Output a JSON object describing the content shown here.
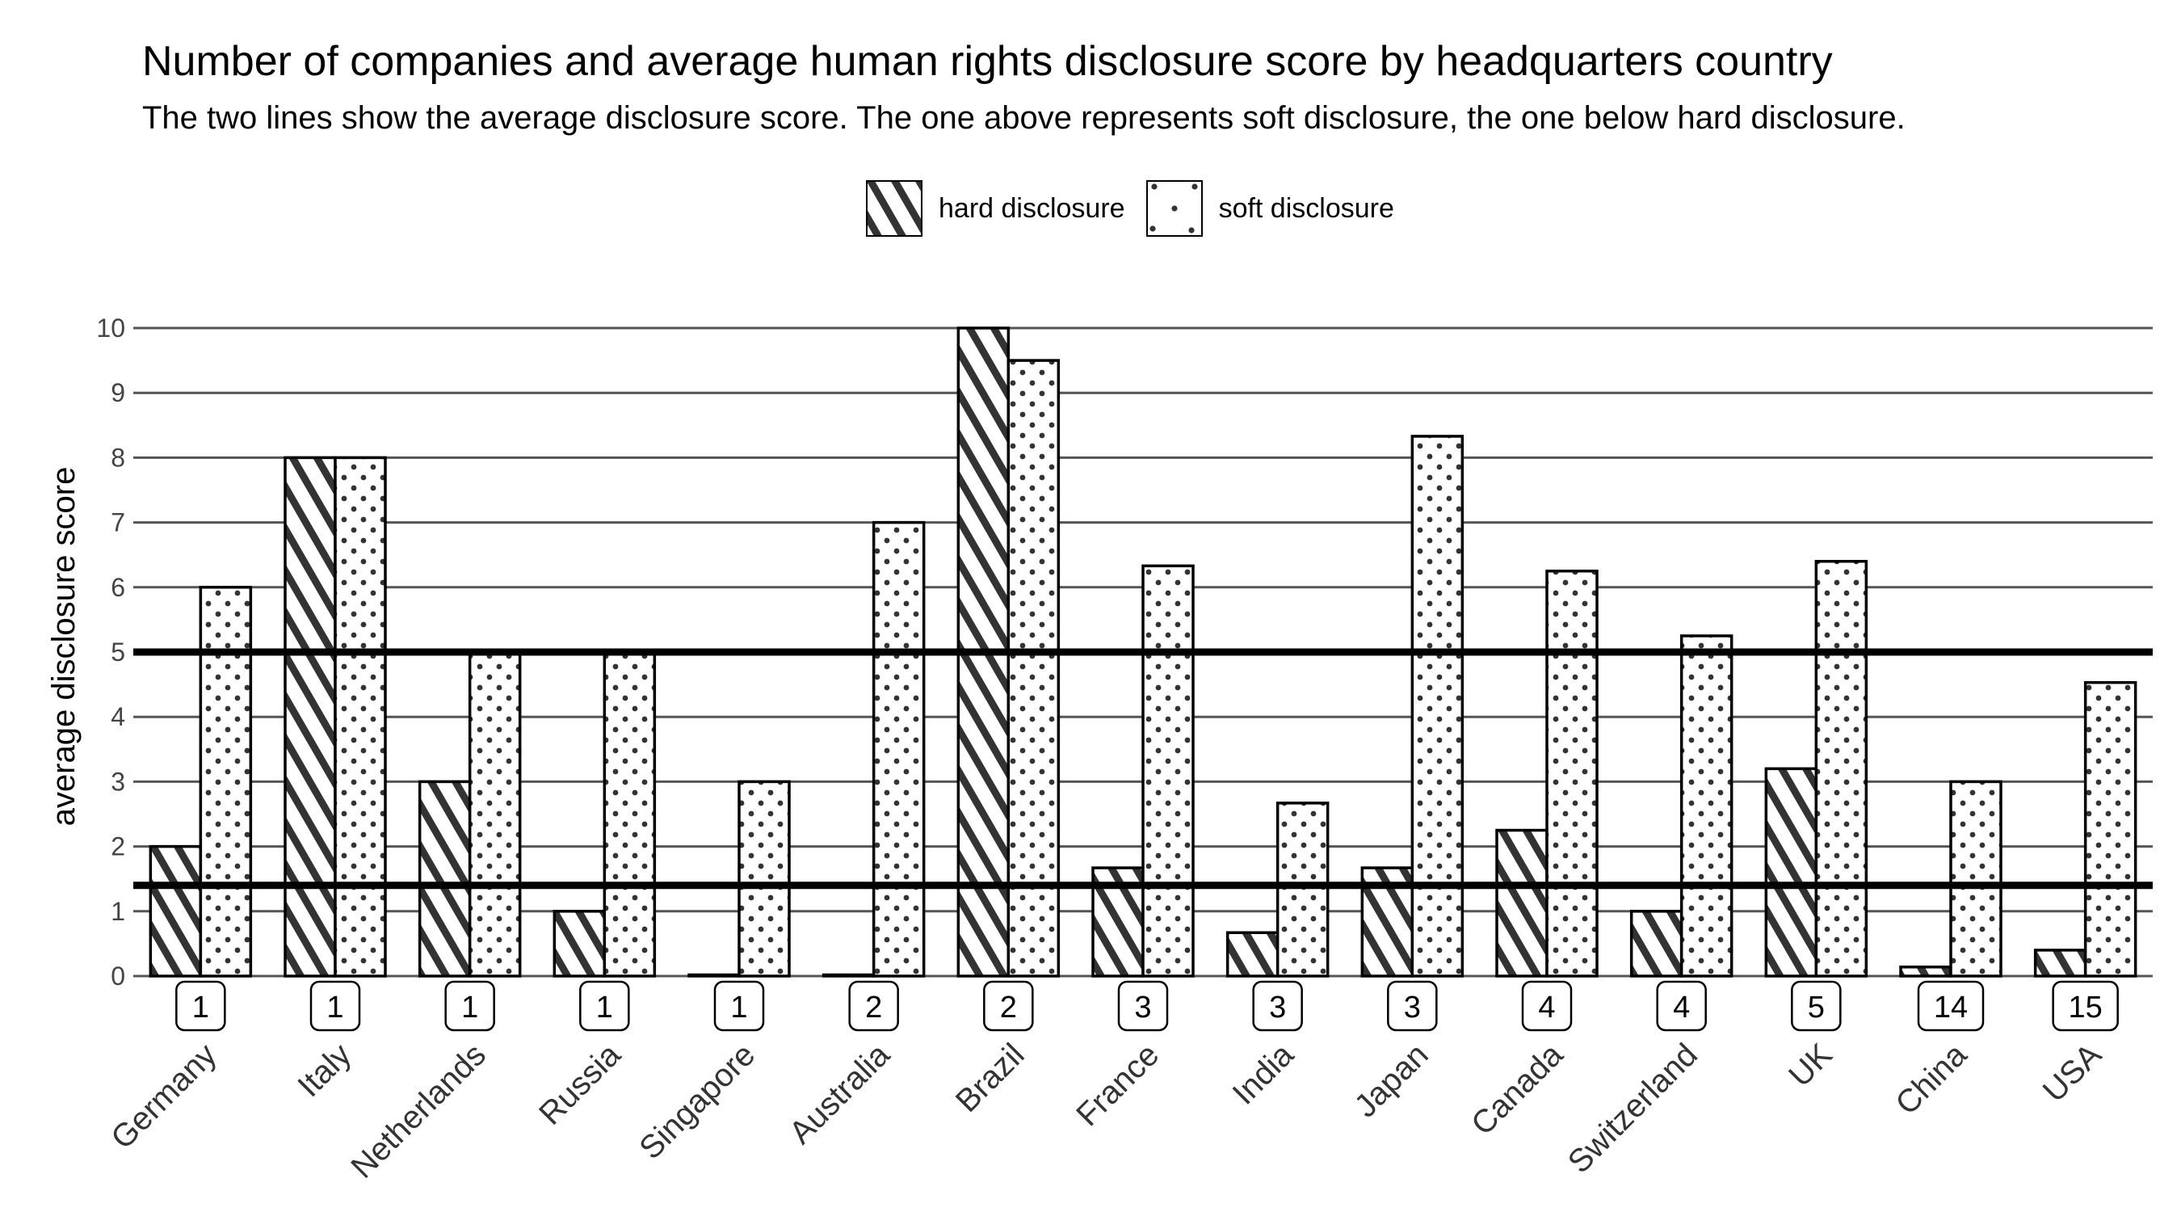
{
  "title": "Number of companies and average human rights disclosure score by headquarters country",
  "subtitle": "The two lines show the average disclosure score. The one above represents soft disclosure, the one below hard disclosure.",
  "legend": [
    {
      "name": "hard disclosure",
      "pattern": "hatch"
    },
    {
      "name": "soft disclosure",
      "pattern": "dots"
    }
  ],
  "chart_data": {
    "type": "bar",
    "ylabel": "average disclosure score",
    "xlabel": "",
    "ylim": [
      0,
      10
    ],
    "yticks": [
      0,
      1,
      2,
      3,
      4,
      5,
      6,
      7,
      8,
      9,
      10
    ],
    "grid": true,
    "legend_position": "top",
    "categories": [
      "Germany",
      "Italy",
      "Netherlands",
      "Russia",
      "Singapore",
      "Australia",
      "Brazil",
      "France",
      "India",
      "Japan",
      "Canada",
      "Switzerland",
      "UK",
      "China",
      "USA"
    ],
    "company_counts": [
      "1",
      "1",
      "1",
      "1",
      "1",
      "2",
      "2",
      "3",
      "3",
      "3",
      "4",
      "4",
      "5",
      "14",
      "15"
    ],
    "series": [
      {
        "name": "hard disclosure",
        "values": [
          2,
          8,
          3,
          1,
          0,
          0,
          10,
          1.67,
          0.67,
          1.67,
          2.25,
          1,
          3.2,
          0.14,
          0.4
        ]
      },
      {
        "name": "soft disclosure",
        "values": [
          6,
          8,
          5,
          5,
          3,
          7,
          9.5,
          6.33,
          2.67,
          8.33,
          6.25,
          5.25,
          6.4,
          3,
          4.53
        ]
      }
    ],
    "reference_lines": [
      {
        "series": "soft disclosure",
        "value": 5
      },
      {
        "series": "hard disclosure",
        "value": 1.4
      }
    ],
    "colors": {
      "bar_fill": "#ffffff",
      "bar_stroke": "#000000",
      "pattern": "#333333",
      "grid": "#555555",
      "reference": "#000000"
    }
  }
}
